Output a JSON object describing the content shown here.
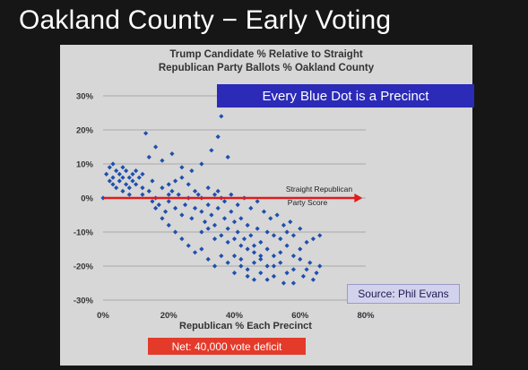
{
  "slide_title": "Oakland County − Early Voting",
  "callout": "Every Blue Dot is a Precinct",
  "source_label": "Source: Phil Evans",
  "net_label": "Net:  40,000 vote deficit",
  "colors": {
    "points": "#1f4fae",
    "reference_line": "#e01b1b",
    "callout_bg": "#2b2bb8",
    "net_bg": "#e43a2a"
  },
  "chart_data": {
    "type": "scatter",
    "title": [
      "Trump Candidate % Relative to Straight",
      "Republican Party Ballots % Oakland County"
    ],
    "xlabel": "Republican % Each Precinct",
    "ylabel": "",
    "xlim": [
      0,
      80
    ],
    "ylim": [
      -30,
      30
    ],
    "x_ticks": [
      0,
      20,
      40,
      60,
      80
    ],
    "x_tick_labels": [
      "0%",
      "20%",
      "40%",
      "60%",
      "80%"
    ],
    "y_ticks": [
      30,
      20,
      10,
      0,
      -10,
      -20,
      -30
    ],
    "y_tick_labels": [
      "30%",
      "20%",
      "10%",
      "0%",
      "-10%",
      "-20%",
      "-30%"
    ],
    "grid": true,
    "reference_line": {
      "y": 0,
      "x_range": [
        0,
        79
      ],
      "label": [
        "Straight Republican",
        "Party Score"
      ]
    },
    "series": [
      {
        "points": [
          [
            1,
            7
          ],
          [
            2,
            5
          ],
          [
            2,
            9
          ],
          [
            3,
            6
          ],
          [
            3,
            4
          ],
          [
            4,
            8
          ],
          [
            4,
            3
          ],
          [
            5,
            7
          ],
          [
            5,
            5
          ],
          [
            6,
            9
          ],
          [
            6,
            6
          ],
          [
            7,
            4
          ],
          [
            7,
            8
          ],
          [
            8,
            6
          ],
          [
            8,
            3
          ],
          [
            9,
            7
          ],
          [
            9,
            5
          ],
          [
            10,
            4
          ],
          [
            10,
            8
          ],
          [
            11,
            6
          ],
          [
            3,
            10
          ],
          [
            6,
            2
          ],
          [
            8,
            1
          ],
          [
            12,
            3
          ],
          [
            12,
            7
          ],
          [
            13,
            19
          ],
          [
            14,
            12
          ],
          [
            16,
            15
          ],
          [
            18,
            11
          ],
          [
            21,
            13
          ],
          [
            24,
            9
          ],
          [
            27,
            8
          ],
          [
            30,
            10
          ],
          [
            33,
            14
          ],
          [
            36,
            24
          ],
          [
            35,
            18
          ],
          [
            38,
            12
          ],
          [
            12,
            1
          ],
          [
            15,
            -1
          ],
          [
            20,
            1
          ],
          [
            0,
            0
          ],
          [
            14,
            2
          ],
          [
            15,
            5
          ],
          [
            16,
            0
          ],
          [
            17,
            -2
          ],
          [
            18,
            3
          ],
          [
            19,
            -4
          ],
          [
            20,
            -1
          ],
          [
            21,
            2
          ],
          [
            22,
            -3
          ],
          [
            23,
            1
          ],
          [
            24,
            -5
          ],
          [
            25,
            -2
          ],
          [
            26,
            0
          ],
          [
            27,
            -6
          ],
          [
            28,
            -3
          ],
          [
            29,
            1
          ],
          [
            30,
            -4
          ],
          [
            31,
            -7
          ],
          [
            32,
            -2
          ],
          [
            33,
            -5
          ],
          [
            34,
            -8
          ],
          [
            35,
            -3
          ],
          [
            36,
            0
          ],
          [
            37,
            -6
          ],
          [
            38,
            -9
          ],
          [
            39,
            -4
          ],
          [
            40,
            -7
          ],
          [
            41,
            -10
          ],
          [
            42,
            -6
          ],
          [
            43,
            -12
          ],
          [
            44,
            -8
          ],
          [
            45,
            -11
          ],
          [
            46,
            -14
          ],
          [
            47,
            -9
          ],
          [
            48,
            -13
          ],
          [
            16,
            -3
          ],
          [
            18,
            -6
          ],
          [
            20,
            -8
          ],
          [
            22,
            -10
          ],
          [
            24,
            -12
          ],
          [
            26,
            -14
          ],
          [
            28,
            -16
          ],
          [
            30,
            -15
          ],
          [
            32,
            -18
          ],
          [
            34,
            -20
          ],
          [
            36,
            -17
          ],
          [
            38,
            -19
          ],
          [
            40,
            -22
          ],
          [
            42,
            -18
          ],
          [
            44,
            -21
          ],
          [
            46,
            -24
          ],
          [
            48,
            -17
          ],
          [
            50,
            -20
          ],
          [
            52,
            -23
          ],
          [
            54,
            -19
          ],
          [
            56,
            -22
          ],
          [
            58,
            -25
          ],
          [
            60,
            -18
          ],
          [
            62,
            -21
          ],
          [
            64,
            -24
          ],
          [
            66,
            -20
          ],
          [
            30,
            -10
          ],
          [
            32,
            -9
          ],
          [
            34,
            -12
          ],
          [
            36,
            -11
          ],
          [
            38,
            -13
          ],
          [
            40,
            -12
          ],
          [
            42,
            -14
          ],
          [
            44,
            -15
          ],
          [
            46,
            -16
          ],
          [
            48,
            -18
          ],
          [
            50,
            -15
          ],
          [
            52,
            -17
          ],
          [
            54,
            -16
          ],
          [
            56,
            -14
          ],
          [
            58,
            -17
          ],
          [
            60,
            -15
          ],
          [
            62,
            -13
          ],
          [
            64,
            -12
          ],
          [
            66,
            -11
          ],
          [
            60,
            -9
          ],
          [
            58,
            -11
          ],
          [
            56,
            -10
          ],
          [
            54,
            -12
          ],
          [
            52,
            -11
          ],
          [
            50,
            -10
          ],
          [
            35,
            2
          ],
          [
            37,
            -1
          ],
          [
            39,
            1
          ],
          [
            41,
            -2
          ],
          [
            43,
            0
          ],
          [
            45,
            -3
          ],
          [
            47,
            -1
          ],
          [
            49,
            -4
          ],
          [
            51,
            -6
          ],
          [
            53,
            -5
          ],
          [
            55,
            -8
          ],
          [
            57,
            -7
          ],
          [
            26,
            4
          ],
          [
            28,
            2
          ],
          [
            30,
            0
          ],
          [
            32,
            3
          ],
          [
            34,
            1
          ],
          [
            24,
            6
          ],
          [
            22,
            5
          ],
          [
            20,
            4
          ],
          [
            40,
            -17
          ],
          [
            42,
            -20
          ],
          [
            44,
            -23
          ],
          [
            46,
            -19
          ],
          [
            48,
            -22
          ],
          [
            50,
            -24
          ],
          [
            52,
            -20
          ],
          [
            55,
            -25
          ],
          [
            58,
            -21
          ],
          [
            61,
            -23
          ],
          [
            63,
            -19
          ],
          [
            65,
            -22
          ]
        ]
      }
    ]
  }
}
